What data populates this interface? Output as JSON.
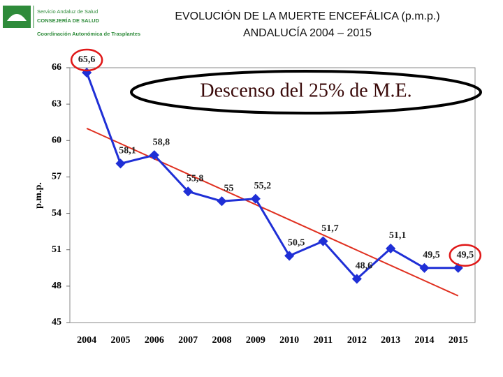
{
  "logo": {
    "line1": "Servicio Andaluz de Salud",
    "line2": "CONSEJERÍA DE SALUD",
    "line3": "Coordinación Autonómica de Trasplantes"
  },
  "chart_data": {
    "type": "line",
    "title": [
      "EVOLUCIÓN DE LA MUERTE ENCEFÁLICA (p.m.p.)",
      "ANDALUCÍA 2004 – 2015"
    ],
    "y_label": "p.m.p.",
    "annotation": "Descenso del 25% de M.E.",
    "categories": [
      "2004",
      "2005",
      "2006",
      "2007",
      "2008",
      "2009",
      "2010",
      "2011",
      "2012",
      "2013",
      "2014",
      "2015"
    ],
    "series": [
      {
        "name": "p.m.p.",
        "color": "#1f2fd6",
        "values": [
          65.6,
          58.1,
          58.8,
          55.8,
          55,
          55.2,
          50.5,
          51.7,
          48.6,
          51.1,
          49.5,
          49.5
        ],
        "value_labels": [
          "65,6",
          "58,1",
          "58,8",
          "55,8",
          "55",
          "55,2",
          "50,5",
          "51,7",
          "48,6",
          "51,1",
          "49,5",
          "49,5"
        ]
      }
    ],
    "trendline": {
      "color": "#e03020",
      "start": 61.0,
      "end": 47.2
    },
    "highlight": [
      0,
      11
    ],
    "highlight_color": "#e01818",
    "ylim": [
      45,
      66
    ],
    "yticks": [
      45,
      48,
      51,
      54,
      57,
      60,
      63,
      66
    ],
    "grid": false
  }
}
